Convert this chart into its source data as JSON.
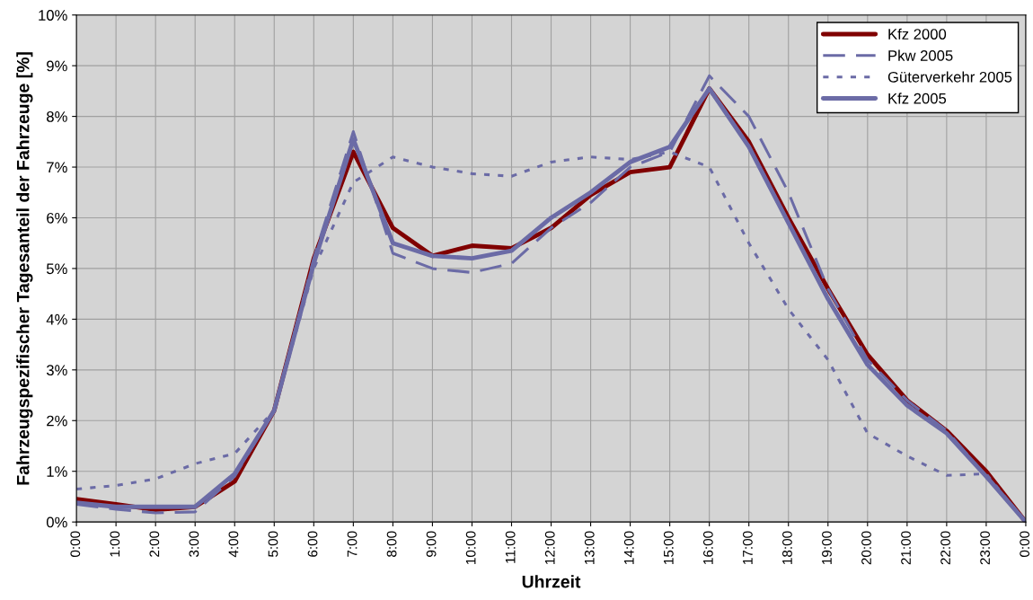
{
  "chart_data": {
    "type": "line",
    "xlabel": "Uhrzeit",
    "ylabel": "Fahrzeugspezifischer Tagesanteil der Fahrzeuge [%]",
    "x": [
      0,
      1,
      2,
      3,
      4,
      5,
      6,
      7,
      8,
      9,
      10,
      11,
      12,
      13,
      14,
      15,
      16,
      17,
      18,
      19,
      20,
      21,
      22,
      23,
      24
    ],
    "series": [
      {
        "name": "Kfz 2000",
        "color": "#800000",
        "line_style": "solid",
        "values": [
          0.45,
          0.35,
          0.24,
          0.3,
          0.8,
          2.2,
          5.2,
          7.3,
          5.8,
          5.25,
          5.45,
          5.4,
          5.8,
          6.45,
          6.9,
          7.0,
          8.55,
          7.5,
          6.0,
          4.6,
          3.3,
          2.4,
          1.8,
          1.0,
          0.0
        ]
      },
      {
        "name": "Pkw 2005",
        "color": "#6b6ba6",
        "line_style": "dashed",
        "values": [
          0.35,
          0.25,
          0.18,
          0.2,
          0.9,
          2.2,
          5.2,
          7.7,
          5.3,
          5.0,
          4.92,
          5.1,
          5.8,
          6.3,
          7.0,
          7.3,
          8.8,
          8.0,
          6.5,
          4.6,
          3.2,
          2.4,
          1.8,
          0.9,
          0.0
        ]
      },
      {
        "name": "Güterverkehr 2005",
        "color": "#6b6ba6",
        "line_style": "dotted",
        "values": [
          0.65,
          0.72,
          0.85,
          1.15,
          1.35,
          2.2,
          5.0,
          6.7,
          7.2,
          7.0,
          6.87,
          6.82,
          7.1,
          7.2,
          7.15,
          7.3,
          7.0,
          5.5,
          4.2,
          3.2,
          1.75,
          1.3,
          0.92,
          0.95,
          0.0
        ]
      },
      {
        "name": "Kfz 2005",
        "color": "#6b6ba6",
        "line_style": "solid",
        "values": [
          0.38,
          0.3,
          0.3,
          0.3,
          0.95,
          2.2,
          5.1,
          7.55,
          5.5,
          5.25,
          5.2,
          5.35,
          6.0,
          6.5,
          7.1,
          7.4,
          8.55,
          7.4,
          5.9,
          4.4,
          3.1,
          2.3,
          1.75,
          0.9,
          0.0
        ]
      }
    ],
    "xlim": [
      0,
      24
    ],
    "xticks": [
      {
        "value": 0,
        "label": "0:00"
      },
      {
        "value": 1,
        "label": "1:00"
      },
      {
        "value": 2,
        "label": "2:00"
      },
      {
        "value": 3,
        "label": "3:00"
      },
      {
        "value": 4,
        "label": "4:00"
      },
      {
        "value": 5,
        "label": "5:00"
      },
      {
        "value": 6,
        "label": "6:00"
      },
      {
        "value": 7,
        "label": "7:00"
      },
      {
        "value": 8,
        "label": "8:00"
      },
      {
        "value": 9,
        "label": "9:00"
      },
      {
        "value": 10,
        "label": "10:00"
      },
      {
        "value": 11,
        "label": "11:00"
      },
      {
        "value": 12,
        "label": "12:00"
      },
      {
        "value": 13,
        "label": "13:00"
      },
      {
        "value": 14,
        "label": "14:00"
      },
      {
        "value": 15,
        "label": "15:00"
      },
      {
        "value": 16,
        "label": "16:00"
      },
      {
        "value": 17,
        "label": "17:00"
      },
      {
        "value": 18,
        "label": "18:00"
      },
      {
        "value": 19,
        "label": "19:00"
      },
      {
        "value": 20,
        "label": "20:00"
      },
      {
        "value": 21,
        "label": "21:00"
      },
      {
        "value": 22,
        "label": "22:00"
      },
      {
        "value": 23,
        "label": "23:00"
      },
      {
        "value": 24,
        "label": "0:00"
      }
    ],
    "ylim": [
      0,
      10
    ],
    "yticks": [
      {
        "value": 0,
        "label": "0%"
      },
      {
        "value": 1,
        "label": "1%"
      },
      {
        "value": 2,
        "label": "2%"
      },
      {
        "value": 3,
        "label": "3%"
      },
      {
        "value": 4,
        "label": "4%"
      },
      {
        "value": 5,
        "label": "5%"
      },
      {
        "value": 6,
        "label": "6%"
      },
      {
        "value": 7,
        "label": "7%"
      },
      {
        "value": 8,
        "label": "8%"
      },
      {
        "value": 9,
        "label": "9%"
      },
      {
        "value": 10,
        "label": "10%"
      }
    ],
    "grid": true,
    "legend": "top right"
  }
}
